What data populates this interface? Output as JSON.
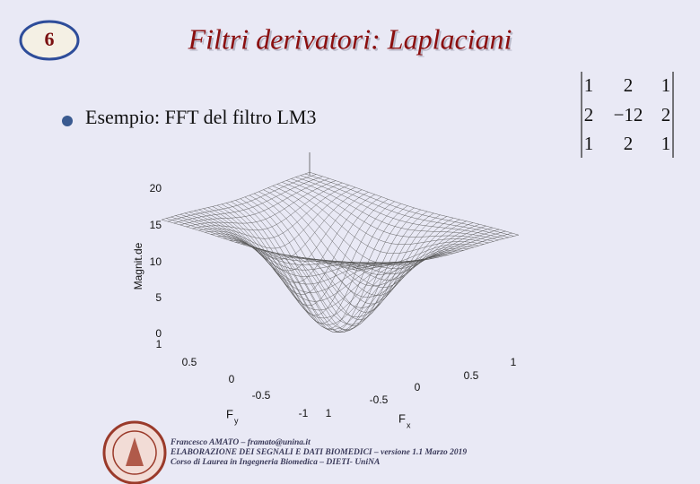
{
  "slide_number": "6",
  "title": "Filtri derivatori: Laplaciani",
  "bullet": "Esempio: FFT del filtro LM3",
  "matrix": [
    [
      "1",
      "2",
      "1"
    ],
    [
      "2",
      "−12",
      "2"
    ],
    [
      "1",
      "2",
      "1"
    ]
  ],
  "plot": {
    "z_label": "Magnit.de",
    "z_ticks": [
      "20",
      "15",
      "10",
      "5",
      "0"
    ],
    "fy_ticks": [
      "1",
      "0.5",
      "0",
      "-0.5",
      "-1"
    ],
    "fx_ticks": [
      "1",
      "-0.5",
      "0",
      "0.5",
      "1"
    ],
    "fy_label": {
      "base": "F",
      "sub": "y"
    },
    "fx_label": {
      "base": "F",
      "sub": "x"
    }
  },
  "footer": [
    "Francesco AMATO – framato@unina.it",
    "ELABORAZIONE DEI SEGNALI E DATI BIOMEDICI – versione 1.1 Marzo 2019",
    "Corso di Laurea in Ingegneria Biomedica – DIETI- UniNA"
  ]
}
